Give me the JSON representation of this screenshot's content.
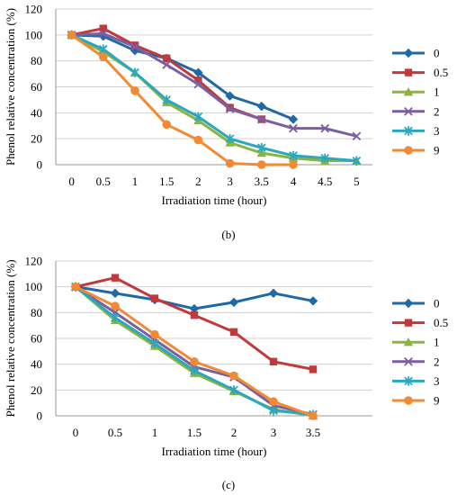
{
  "chart_data": [
    {
      "type": "line",
      "panel_label": "(b)",
      "xlabel": "Irradiation time (hour)",
      "ylabel": "Phenol relative concentration (%)",
      "categories": [
        "0",
        "0.5",
        "1",
        "1.5",
        "2",
        "3",
        "3.5",
        "4",
        "4.5",
        "5"
      ],
      "ylim": [
        0,
        120
      ],
      "yticks": [
        0,
        20,
        40,
        60,
        80,
        100,
        120
      ],
      "grid": true,
      "legend_position": "right",
      "series": [
        {
          "name": "0",
          "color": "#1f6aa5",
          "marker": "diamond",
          "values": [
            100,
            99,
            88,
            82,
            71,
            53,
            45,
            35,
            null,
            null
          ]
        },
        {
          "name": "0.5",
          "color": "#c0393b",
          "marker": "square",
          "values": [
            100,
            105,
            92,
            82,
            65,
            44,
            35,
            null,
            null,
            null
          ]
        },
        {
          "name": "1",
          "color": "#8db43c",
          "marker": "triangle",
          "values": [
            100,
            87,
            71,
            48,
            34,
            17,
            9,
            5,
            3,
            3
          ]
        },
        {
          "name": "2",
          "color": "#7b5fa0",
          "marker": "x",
          "values": [
            100,
            101,
            91,
            77,
            62,
            43,
            35,
            28,
            28,
            22
          ]
        },
        {
          "name": "3",
          "color": "#2aa8c0",
          "marker": "asterisk",
          "values": [
            100,
            89,
            71,
            50,
            37,
            20,
            13,
            7,
            5,
            3
          ]
        },
        {
          "name": "9",
          "color": "#f28a33",
          "marker": "circle",
          "values": [
            100,
            83,
            57,
            31,
            19,
            1,
            0,
            0,
            null,
            null
          ]
        }
      ]
    },
    {
      "type": "line",
      "panel_label": "(c)",
      "xlabel": "Irradiation time (hour)",
      "ylabel": "Phenol relative concentration (%)",
      "categories": [
        "0",
        "0.5",
        "1",
        "1.5",
        "2",
        "3",
        "3.5"
      ],
      "slots": 8,
      "ylim": [
        0,
        120
      ],
      "yticks": [
        0,
        20,
        40,
        60,
        80,
        100,
        120
      ],
      "grid": true,
      "legend_position": "right",
      "series": [
        {
          "name": "0",
          "color": "#1f6aa5",
          "marker": "diamond",
          "values": [
            100,
            95,
            90,
            83,
            88,
            95,
            89
          ]
        },
        {
          "name": "0.5",
          "color": "#c0393b",
          "marker": "square",
          "values": [
            100,
            107,
            91,
            78,
            65,
            42,
            36
          ]
        },
        {
          "name": "1",
          "color": "#8db43c",
          "marker": "triangle",
          "values": [
            100,
            74,
            54,
            33,
            19,
            5,
            0
          ]
        },
        {
          "name": "2",
          "color": "#7b5fa0",
          "marker": "x",
          "values": [
            100,
            80,
            59,
            38,
            30,
            8,
            1
          ]
        },
        {
          "name": "3",
          "color": "#2aa8c0",
          "marker": "asterisk",
          "values": [
            100,
            76,
            56,
            35,
            20,
            4,
            1
          ]
        },
        {
          "name": "9",
          "color": "#f28a33",
          "marker": "circle",
          "values": [
            100,
            85,
            63,
            42,
            31,
            11,
            0
          ]
        }
      ]
    }
  ]
}
